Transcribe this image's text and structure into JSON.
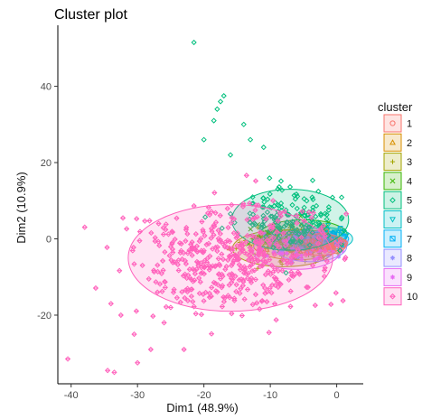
{
  "chart_data": {
    "type": "scatter",
    "title": "Cluster plot",
    "xlabel": "Dim1 (48.9%)",
    "ylabel": "Dim2 (10.9%)",
    "xlim": [
      -42,
      4
    ],
    "ylim": [
      -38,
      56
    ],
    "xticks": [
      -40,
      -30,
      -20,
      -10,
      0
    ],
    "yticks": [
      -20,
      0,
      20,
      40
    ],
    "grid": false,
    "legend": {
      "title": "cluster",
      "position": "right"
    },
    "series": [
      {
        "name": "1",
        "color": "#F8766D",
        "symbol": "circle",
        "center": [
          -2.5,
          -1.5
        ],
        "spread": [
          1.8,
          1.4
        ],
        "count": 40
      },
      {
        "name": "2",
        "color": "#D89000",
        "symbol": "triangle",
        "center": [
          -6,
          -1.5
        ],
        "spread": [
          3.0,
          2.0
        ],
        "count": 60
      },
      {
        "name": "3",
        "color": "#A3A500",
        "symbol": "plus",
        "center": [
          -8,
          -2.5
        ],
        "spread": [
          3.5,
          2.4
        ],
        "count": 90
      },
      {
        "name": "4",
        "color": "#39B600",
        "symbol": "cross",
        "center": [
          -5,
          1
        ],
        "spread": [
          3.0,
          2.0
        ],
        "count": 60
      },
      {
        "name": "5",
        "color": "#00BF7D",
        "symbol": "diamond",
        "center": [
          -7,
          5
        ],
        "spread": [
          4.0,
          4.0
        ],
        "count": 170
      },
      {
        "name": "6",
        "color": "#00BFC4",
        "symbol": "triangle-down",
        "center": [
          -2,
          0
        ],
        "spread": [
          2.0,
          1.5
        ],
        "count": 40
      },
      {
        "name": "7",
        "color": "#00B0F6",
        "symbol": "square-x",
        "center": [
          -1.5,
          0
        ],
        "spread": [
          1.5,
          1.0
        ],
        "count": 30
      },
      {
        "name": "8",
        "color": "#9590FF",
        "symbol": "asterisk",
        "center": [
          -4,
          -2
        ],
        "spread": [
          2.5,
          2.0
        ],
        "count": 40
      },
      {
        "name": "9",
        "color": "#E76BF3",
        "symbol": "star",
        "center": [
          -6,
          -3
        ],
        "spread": [
          3.0,
          2.5
        ],
        "count": 40
      },
      {
        "name": "10",
        "color": "#FF62BC",
        "symbol": "diamond-plus",
        "center": [
          -16,
          -5
        ],
        "spread": [
          7.0,
          7.0
        ],
        "count": 460
      }
    ],
    "outliers": {
      "5": [
        [
          -21.5,
          51.5
        ],
        [
          -17.5,
          36
        ],
        [
          -17,
          37.5
        ],
        [
          -18,
          34
        ],
        [
          -14,
          30
        ],
        [
          -13,
          26
        ],
        [
          -20,
          26
        ],
        [
          -16,
          22
        ],
        [
          -11,
          24
        ],
        [
          -18.5,
          31
        ]
      ],
      "10": [
        [
          -40.5,
          -31.5
        ],
        [
          -34.5,
          -34.5
        ],
        [
          -33.5,
          -35
        ],
        [
          -30,
          -32.5
        ],
        [
          -28,
          -29
        ],
        [
          -30.5,
          -25
        ],
        [
          -34,
          -17
        ],
        [
          -32.5,
          -20
        ],
        [
          -23,
          -29
        ],
        [
          -26,
          -22
        ],
        [
          -27,
          -14
        ],
        [
          -25,
          -18
        ]
      ]
    }
  }
}
